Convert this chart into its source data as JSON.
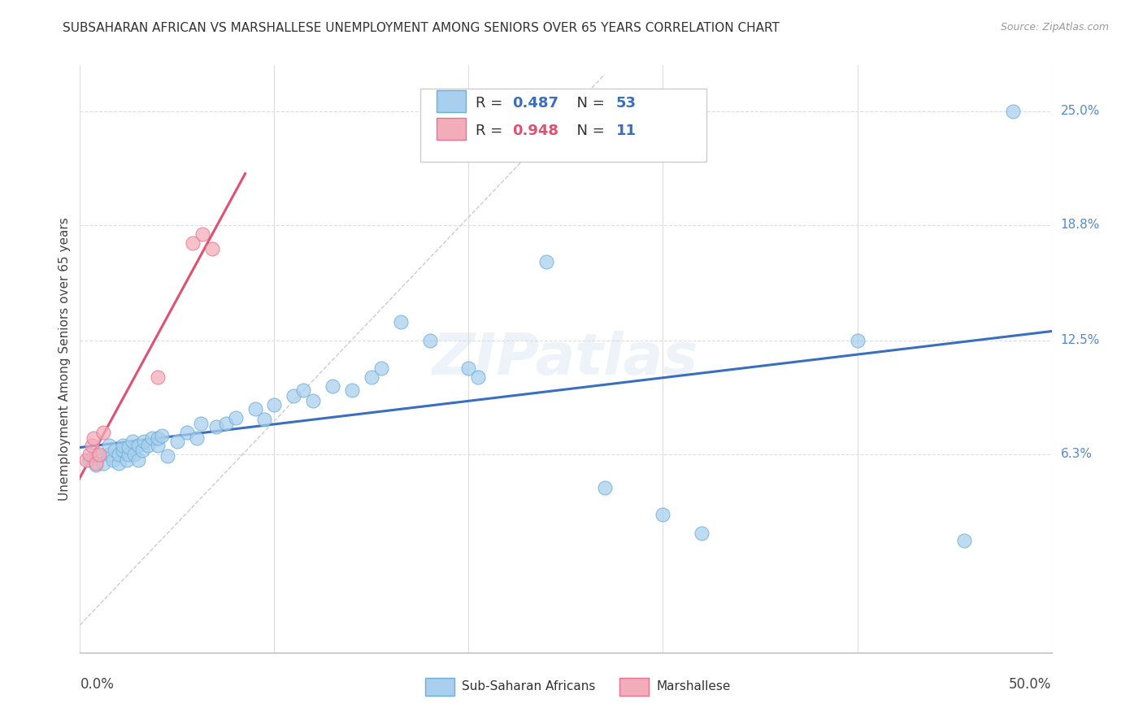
{
  "title": "SUBSAHARAN AFRICAN VS MARSHALLESE UNEMPLOYMENT AMONG SENIORS OVER 65 YEARS CORRELATION CHART",
  "source": "Source: ZipAtlas.com",
  "ylabel": "Unemployment Among Seniors over 65 years",
  "yticks": [
    0.063,
    0.125,
    0.188,
    0.25
  ],
  "ytick_labels": [
    "6.3%",
    "12.5%",
    "18.8%",
    "25.0%"
  ],
  "xlim": [
    0.0,
    0.5
  ],
  "ylim": [
    -0.045,
    0.275
  ],
  "blue_color": "#A8CFED",
  "pink_color": "#F2ACBA",
  "blue_edge_color": "#6AAFD6",
  "pink_edge_color": "#E87090",
  "blue_line_color": "#3A6FBF",
  "pink_line_color": "#E05070",
  "diag_color": "#CCCCCC",
  "grid_color": "#DDDDDD",
  "scatter_blue": [
    [
      0.005,
      0.06
    ],
    [
      0.008,
      0.057
    ],
    [
      0.01,
      0.062
    ],
    [
      0.012,
      0.058
    ],
    [
      0.015,
      0.063
    ],
    [
      0.015,
      0.068
    ],
    [
      0.017,
      0.06
    ],
    [
      0.018,
      0.065
    ],
    [
      0.02,
      0.058
    ],
    [
      0.02,
      0.063
    ],
    [
      0.022,
      0.065
    ],
    [
      0.022,
      0.068
    ],
    [
      0.024,
      0.06
    ],
    [
      0.025,
      0.063
    ],
    [
      0.025,
      0.067
    ],
    [
      0.027,
      0.07
    ],
    [
      0.028,
      0.063
    ],
    [
      0.03,
      0.068
    ],
    [
      0.03,
      0.06
    ],
    [
      0.032,
      0.065
    ],
    [
      0.033,
      0.07
    ],
    [
      0.035,
      0.068
    ],
    [
      0.037,
      0.072
    ],
    [
      0.04,
      0.068
    ],
    [
      0.04,
      0.072
    ],
    [
      0.042,
      0.073
    ],
    [
      0.045,
      0.062
    ],
    [
      0.05,
      0.07
    ],
    [
      0.055,
      0.075
    ],
    [
      0.06,
      0.072
    ],
    [
      0.062,
      0.08
    ],
    [
      0.07,
      0.078
    ],
    [
      0.075,
      0.08
    ],
    [
      0.08,
      0.083
    ],
    [
      0.09,
      0.088
    ],
    [
      0.095,
      0.082
    ],
    [
      0.1,
      0.09
    ],
    [
      0.11,
      0.095
    ],
    [
      0.115,
      0.098
    ],
    [
      0.12,
      0.092
    ],
    [
      0.13,
      0.1
    ],
    [
      0.14,
      0.098
    ],
    [
      0.15,
      0.105
    ],
    [
      0.155,
      0.11
    ],
    [
      0.165,
      0.135
    ],
    [
      0.18,
      0.125
    ],
    [
      0.2,
      0.11
    ],
    [
      0.205,
      0.105
    ],
    [
      0.24,
      0.168
    ],
    [
      0.27,
      0.045
    ],
    [
      0.3,
      0.03
    ],
    [
      0.32,
      0.02
    ],
    [
      0.4,
      0.125
    ],
    [
      0.455,
      0.016
    ],
    [
      0.48,
      0.25
    ]
  ],
  "scatter_pink": [
    [
      0.003,
      0.06
    ],
    [
      0.005,
      0.063
    ],
    [
      0.006,
      0.068
    ],
    [
      0.007,
      0.072
    ],
    [
      0.008,
      0.058
    ],
    [
      0.01,
      0.063
    ],
    [
      0.012,
      0.075
    ],
    [
      0.04,
      0.105
    ],
    [
      0.058,
      0.178
    ],
    [
      0.063,
      0.183
    ],
    [
      0.068,
      0.175
    ]
  ],
  "watermark": "ZIPatlas",
  "background_color": "#FFFFFF"
}
